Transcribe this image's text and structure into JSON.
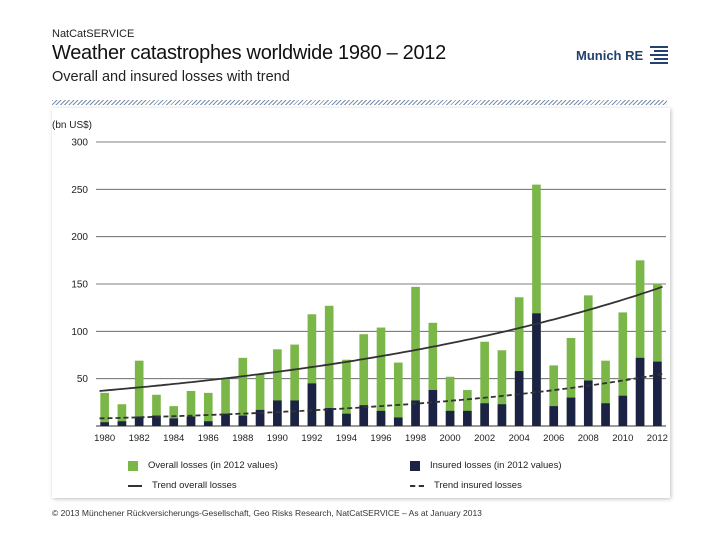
{
  "header": {
    "source": "NatCatSERVICE",
    "title": "Weather catastrophes worldwide 1980 – 2012",
    "subtitle": "Overall and insured losses with trend",
    "logo_text": "Munich RE"
  },
  "footer": {
    "text": "© 2013 Münchener Rückversicherungs-Gesellschaft, Geo Risks Research, NatCatSERVICE – As at January 2013"
  },
  "legend": {
    "overall": "Overall losses (in 2012 values)",
    "insured": "Insured losses (in 2012 values)",
    "trend_overall": "Trend overall losses",
    "trend_insured": "Trend insured losses"
  },
  "colors": {
    "overall": "#7ab648",
    "insured": "#1b2244",
    "trend": "#333333",
    "grid": "#555555"
  },
  "chart_data": {
    "type": "bar",
    "ylabel": "(bn US$)",
    "ylim": [
      0,
      300
    ],
    "yticks": [
      50,
      100,
      150,
      200,
      250,
      300
    ],
    "grid": true,
    "legend_position": "bottom",
    "x": [
      1980,
      1981,
      1982,
      1983,
      1984,
      1985,
      1986,
      1987,
      1988,
      1989,
      1990,
      1991,
      1992,
      1993,
      1994,
      1995,
      1996,
      1997,
      1998,
      1999,
      2000,
      2001,
      2002,
      2003,
      2004,
      2005,
      2006,
      2007,
      2008,
      2009,
      2010,
      2011,
      2012
    ],
    "xtick_labels": [
      "1980",
      "1982",
      "1984",
      "1986",
      "1988",
      "1990",
      "1992",
      "1994",
      "1996",
      "1998",
      "2000",
      "2002",
      "2004",
      "2006",
      "2008",
      "2010",
      "2012"
    ],
    "series": [
      {
        "name": "Overall losses (in 2012 values)",
        "values": [
          35,
          23,
          69,
          33,
          21,
          37,
          35,
          50,
          72,
          55,
          81,
          86,
          118,
          127,
          70,
          97,
          104,
          67,
          147,
          109,
          52,
          38,
          89,
          80,
          136,
          255,
          64,
          93,
          138,
          69,
          120,
          175,
          150
        ]
      },
      {
        "name": "Insured losses (in 2012 values)",
        "values": [
          4,
          5,
          10,
          11,
          8,
          10,
          5,
          13,
          11,
          17,
          27,
          27,
          45,
          19,
          13,
          22,
          16,
          9,
          27,
          38,
          16,
          16,
          24,
          23,
          58,
          119,
          21,
          30,
          48,
          24,
          32,
          72,
          68
        ]
      }
    ],
    "trends": [
      {
        "name": "Trend overall losses",
        "start": 37,
        "end": 147
      },
      {
        "name": "Trend insured losses",
        "start": 8,
        "end": 55
      }
    ]
  }
}
